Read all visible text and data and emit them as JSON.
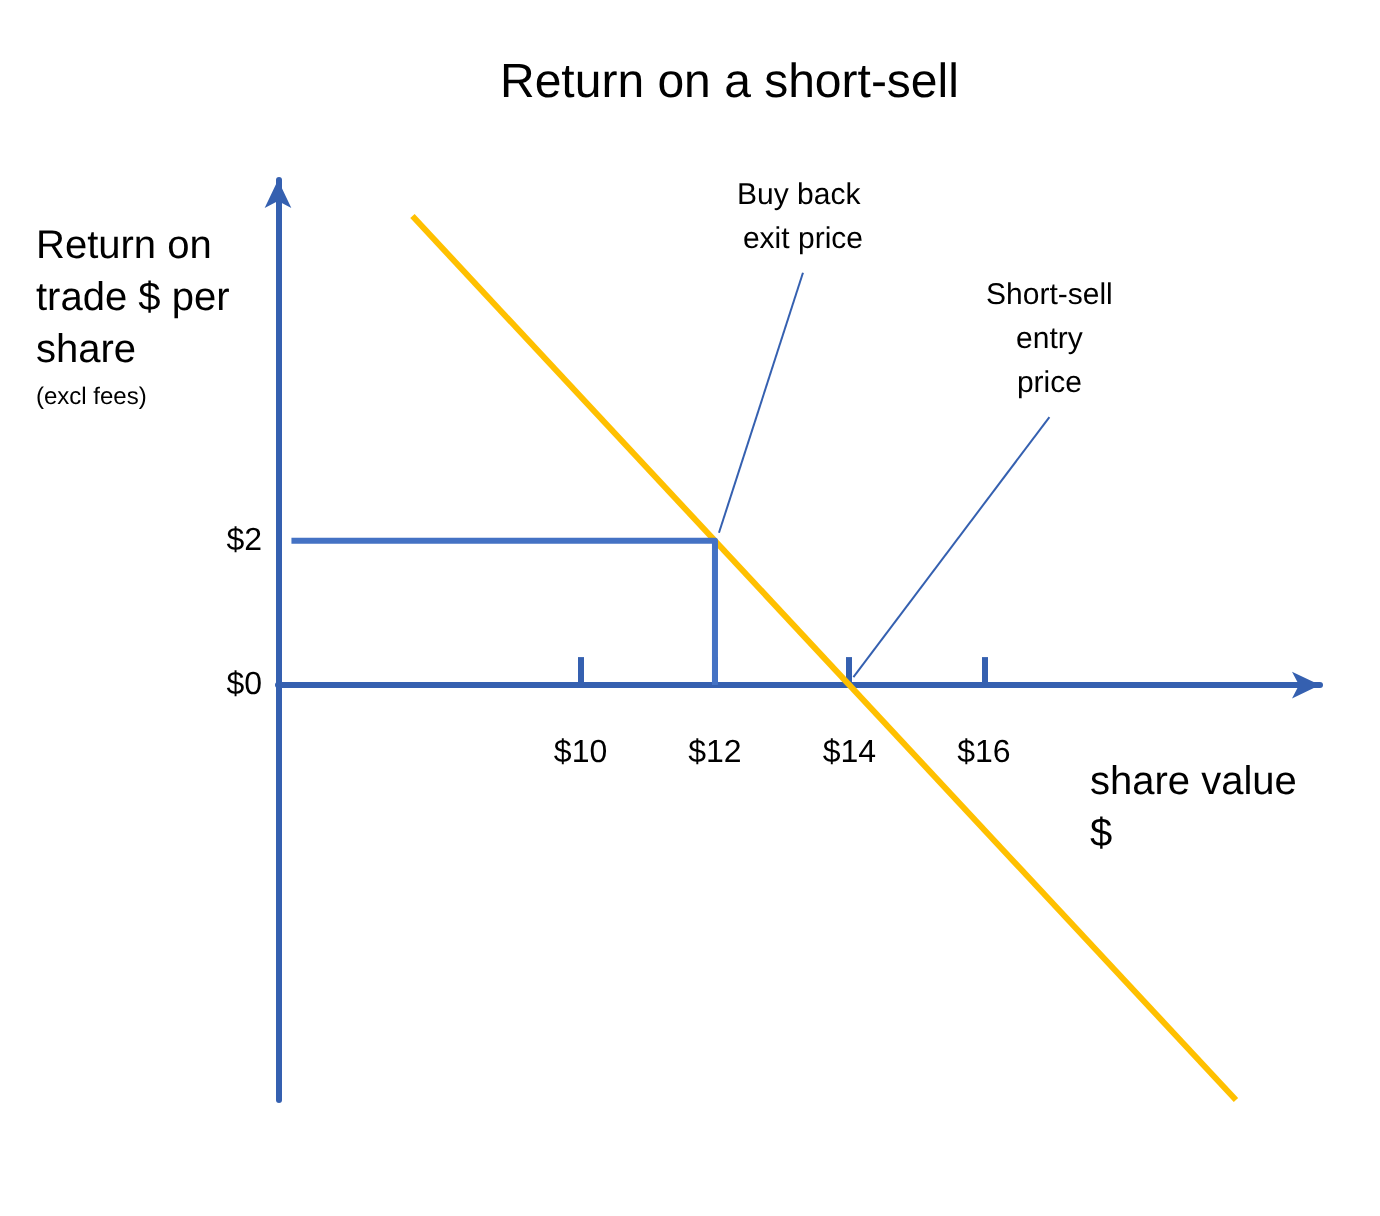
{
  "chart_data": {
    "type": "line",
    "title": "Return on a short-sell",
    "xlabel": "share value $",
    "ylabel": "Return on trade $ per share",
    "annotations": [
      "(excl fees)",
      {
        "text": "Buy back exit price",
        "x": 12,
        "y": 2
      },
      {
        "text": "Short-sell entry price",
        "x": 14,
        "y": 0
      }
    ],
    "series": [
      {
        "color": "#ffc000",
        "x": [
          7.5,
          19.75
        ],
        "values": [
          6.5,
          -5.75
        ]
      },
      {
        "color": "#4472c4",
        "x": [
          12,
          12,
          5.7
        ],
        "values": [
          0,
          2,
          2
        ]
      }
    ],
    "xlim": [
      5.5,
      21
    ],
    "xticks": [
      {
        "value": 10,
        "label": "$10"
      },
      {
        "value": 12,
        "label": "$12"
      },
      {
        "value": 14,
        "label": "$14"
      },
      {
        "value": 16,
        "label": "$16"
      }
    ],
    "ylim": [
      -5.75,
      7
    ],
    "yticks": [
      {
        "value": 0,
        "label": "$0"
      },
      {
        "value": 2,
        "label": "$2"
      }
    ],
    "marker": "none"
  }
}
